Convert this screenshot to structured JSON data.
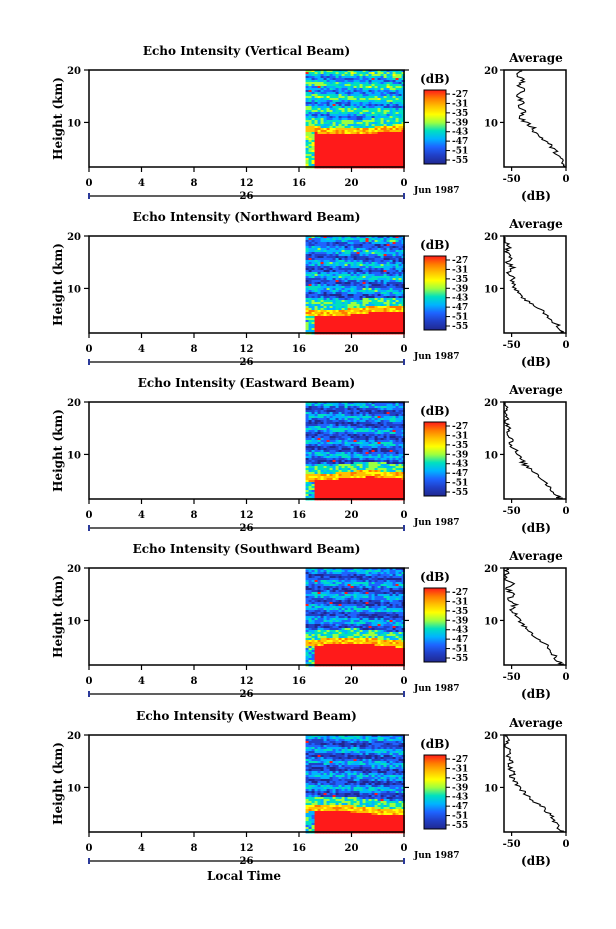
{
  "chart_data": {
    "type": "heatmap",
    "figure_xlabel": "Local Time",
    "panels": [
      {
        "title": "Echo Intensity (Vertical Beam)",
        "ylabel": "Height (km)",
        "surface_height_km": 8.2,
        "noise_level_db": -45,
        "profile": [
          [
            20,
            -41
          ],
          [
            19,
            -44
          ],
          [
            18,
            -40
          ],
          [
            17,
            -43
          ],
          [
            16,
            -39
          ],
          [
            15,
            -45
          ],
          [
            14,
            -40
          ],
          [
            13,
            -42
          ],
          [
            12,
            -38
          ],
          [
            11,
            -43
          ],
          [
            10,
            -37
          ],
          [
            9,
            -30
          ],
          [
            8,
            -28
          ],
          [
            7,
            -22
          ],
          [
            6,
            -16
          ],
          [
            5,
            -12
          ],
          [
            4,
            -8
          ],
          [
            3,
            -5
          ],
          [
            2,
            -3
          ],
          [
            1,
            -1
          ]
        ]
      },
      {
        "title": "Echo Intensity (Northward Beam)",
        "ylabel": "Height (km)",
        "surface_height_km": 5.3,
        "noise_level_db": -48,
        "profile": [
          [
            20,
            -55
          ],
          [
            19,
            -57
          ],
          [
            18,
            -52
          ],
          [
            17,
            -56
          ],
          [
            16,
            -50
          ],
          [
            15,
            -54
          ],
          [
            14,
            -49
          ],
          [
            13,
            -52
          ],
          [
            12,
            -48
          ],
          [
            11,
            -50
          ],
          [
            10,
            -46
          ],
          [
            9,
            -42
          ],
          [
            8,
            -38
          ],
          [
            7,
            -32
          ],
          [
            6,
            -22
          ],
          [
            5,
            -18
          ],
          [
            4,
            -15
          ],
          [
            3,
            -8
          ],
          [
            2,
            -5
          ],
          [
            1,
            -2
          ]
        ]
      },
      {
        "title": "Echo Intensity (Eastward Beam)",
        "ylabel": "Height (km)",
        "surface_height_km": 5.5,
        "noise_level_db": -49,
        "profile": [
          [
            20,
            -57
          ],
          [
            19,
            -55
          ],
          [
            18,
            -58
          ],
          [
            17,
            -53
          ],
          [
            16,
            -56
          ],
          [
            15,
            -50
          ],
          [
            14,
            -54
          ],
          [
            13,
            -49
          ],
          [
            12,
            -51
          ],
          [
            11,
            -47
          ],
          [
            10,
            -45
          ],
          [
            9,
            -41
          ],
          [
            8,
            -38
          ],
          [
            7,
            -31
          ],
          [
            6,
            -25
          ],
          [
            5,
            -20
          ],
          [
            4,
            -16
          ],
          [
            3,
            -12
          ],
          [
            2,
            -8
          ],
          [
            1,
            -3
          ]
        ]
      },
      {
        "title": "Echo Intensity (Southward Beam)",
        "ylabel": "Height (km)",
        "surface_height_km": 5.4,
        "noise_level_db": -49,
        "profile": [
          [
            20,
            -55
          ],
          [
            19,
            -53
          ],
          [
            18,
            -56
          ],
          [
            17,
            -50
          ],
          [
            16,
            -54
          ],
          [
            15,
            -49
          ],
          [
            14,
            -52
          ],
          [
            13,
            -47
          ],
          [
            12,
            -49
          ],
          [
            11,
            -45
          ],
          [
            10,
            -42
          ],
          [
            9,
            -39
          ],
          [
            8,
            -35
          ],
          [
            7,
            -28
          ],
          [
            6,
            -22
          ],
          [
            5,
            -17
          ],
          [
            4,
            -14
          ],
          [
            3,
            -10
          ],
          [
            2,
            -6
          ],
          [
            1,
            -2
          ]
        ]
      },
      {
        "title": "Echo Intensity (Westward Beam)",
        "ylabel": "Height (km)",
        "surface_height_km": 5.3,
        "noise_level_db": -49,
        "profile": [
          [
            20,
            -56
          ],
          [
            19,
            -54
          ],
          [
            18,
            -57
          ],
          [
            17,
            -52
          ],
          [
            16,
            -55
          ],
          [
            15,
            -50
          ],
          [
            14,
            -53
          ],
          [
            13,
            -48
          ],
          [
            12,
            -50
          ],
          [
            11,
            -46
          ],
          [
            10,
            -43
          ],
          [
            9,
            -38
          ],
          [
            8,
            -33
          ],
          [
            7,
            -27
          ],
          [
            6,
            -20
          ],
          [
            5,
            -16
          ],
          [
            4,
            -12
          ],
          [
            3,
            -9
          ],
          [
            2,
            -5
          ],
          [
            1,
            -2
          ]
        ]
      }
    ],
    "x_ticks": [
      "0",
      "4",
      "8",
      "12",
      "16",
      "20",
      "0"
    ],
    "xlim_hours": [
      0,
      24
    ],
    "data_start_hour": 16.5,
    "data_surface_start_hour": 17.0,
    "date_day": "26",
    "date_month_year": "Jun 1987",
    "ylim_km": [
      1.5,
      20
    ],
    "y_ticks": [
      "20",
      "10"
    ],
    "colorbar": {
      "unit": "(dB)",
      "labels": [
        "-27",
        "-31",
        "-35",
        "-39",
        "-43",
        "-47",
        "-51",
        "-55"
      ],
      "range_db": [
        -57,
        -25
      ],
      "colors": [
        "#ff1a1a",
        "#ff7a00",
        "#ffc000",
        "#ffff00",
        "#9cff40",
        "#00e0c0",
        "#00b4ff",
        "#1e64ff",
        "#2040c8",
        "#202890"
      ]
    },
    "average": {
      "title": "Average",
      "xlabel": "(dB)",
      "xlim_db": [
        -57,
        0
      ],
      "x_ticks_db": [
        -50,
        0
      ],
      "x_tick_labels": [
        "-50",
        "0"
      ],
      "y_ticks": [
        "20",
        "10"
      ]
    }
  }
}
